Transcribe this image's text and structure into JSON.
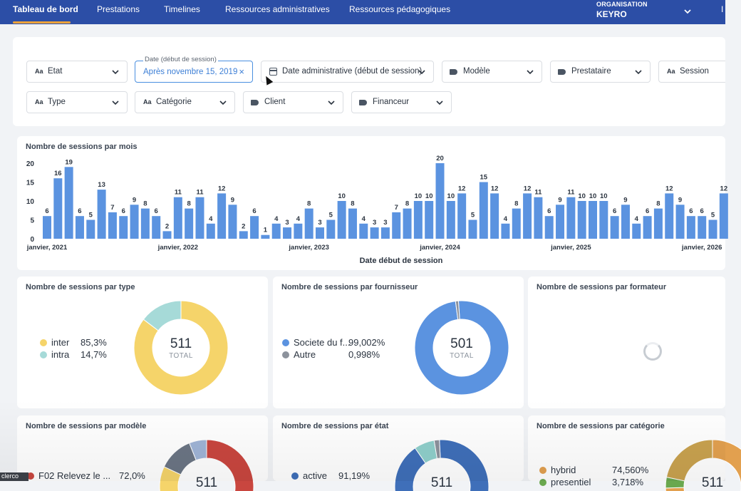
{
  "nav": {
    "items": [
      "Tableau de bord",
      "Prestations",
      "Timelines",
      "Ressources administratives",
      "Ressources pédagogiques"
    ],
    "org_label": "ORGANISATION",
    "org_name": "KEYRO",
    "extra": "I"
  },
  "filters": {
    "etat": "Etat",
    "date_caption": "Date (début de session)",
    "date_value": "Après novembre 15, 2019",
    "date_clear": "×",
    "date_admin": "Date administrative (début de session)",
    "modele": "Modèle",
    "prestataire": "Prestataire",
    "session": "Session",
    "type": "Type",
    "categorie": "Catégorie",
    "client": "Client",
    "financeur": "Financeur",
    "text_icon": "Aa"
  },
  "chart_data": [
    {
      "type": "bar",
      "title": "Nombre de sessions par mois",
      "xlabel": "Date début de session",
      "ylabel": "",
      "ylim": [
        0,
        20
      ],
      "yticks": [
        "0",
        "5",
        "10",
        "15",
        "20"
      ],
      "xtick_labels": [
        "janvier, 2021",
        "janvier, 2022",
        "janvier, 2023",
        "janvier, 2024",
        "janvier, 2025",
        "janvier, 2026"
      ],
      "color": "#5b93e0",
      "values": [
        6,
        16,
        19,
        6,
        5,
        13,
        7,
        6,
        9,
        8,
        6,
        2,
        11,
        8,
        11,
        4,
        12,
        9,
        2,
        6,
        1,
        4,
        3,
        4,
        8,
        3,
        5,
        10,
        8,
        4,
        3,
        3,
        7,
        8,
        10,
        10,
        20,
        10,
        12,
        5,
        15,
        12,
        4,
        8,
        12,
        11,
        6,
        9,
        11,
        10,
        10,
        10,
        6,
        9,
        4,
        6,
        8,
        12,
        9,
        6,
        6,
        5,
        12
      ]
    },
    {
      "type": "pie",
      "title": "Nombre de sessions par type",
      "total": "511",
      "total_label": "TOTAL",
      "slices": [
        {
          "label": "inter",
          "pct_text": "85,3%",
          "value": 85.3,
          "color": "#f5d46a"
        },
        {
          "label": "intra",
          "pct_text": "14,7%",
          "value": 14.7,
          "color": "#a6dad8"
        }
      ]
    },
    {
      "type": "pie",
      "title": "Nombre de sessions par fournisseur",
      "total": "501",
      "total_label": "TOTAL",
      "slices": [
        {
          "label": "Societe du f...",
          "pct_text": "99,002%",
          "value": 99.002,
          "color": "#5b93e0"
        },
        {
          "label": "Autre",
          "pct_text": "0,998%",
          "value": 0.998,
          "color": "#8c929c"
        }
      ]
    },
    {
      "type": "pie",
      "title": "Nombre de sessions par formateur",
      "slices": []
    },
    {
      "type": "pie",
      "title": "Nombre de sessions par modèle",
      "total": "511",
      "slices": [
        {
          "label": "F02 Relevez le ...",
          "pct_text": "72,0%",
          "value": 72.0,
          "color": "#c9463f"
        },
        {
          "label": "",
          "value": 10.0,
          "color": "#f5d46a"
        },
        {
          "label": "",
          "value": 12.0,
          "color": "#6b7584"
        },
        {
          "label": "",
          "value": 6.0,
          "color": "#9fb4d6"
        }
      ]
    },
    {
      "type": "pie",
      "title": "Nombre de sessions par état",
      "total": "511",
      "slices": [
        {
          "label": "active",
          "pct_text": "91,19%",
          "value": 91.19,
          "color": "#3f6fb9"
        },
        {
          "label": "",
          "value": 7.0,
          "color": "#8fcfcb"
        },
        {
          "label": "",
          "value": 1.81,
          "color": "#8c929c"
        }
      ]
    },
    {
      "type": "pie",
      "title": "Nombre de sessions par catégorie",
      "total": "511",
      "slices": [
        {
          "label": "hybrid",
          "pct_text": "74,560%",
          "value": 74.56,
          "color": "#e2a04f"
        },
        {
          "label": "presentiel",
          "pct_text": "3,718%",
          "value": 3.718,
          "color": "#6aa84f"
        },
        {
          "label": "",
          "value": 21.722,
          "color": "#c9a24f"
        }
      ]
    }
  ],
  "bottom_tag": "clerco"
}
